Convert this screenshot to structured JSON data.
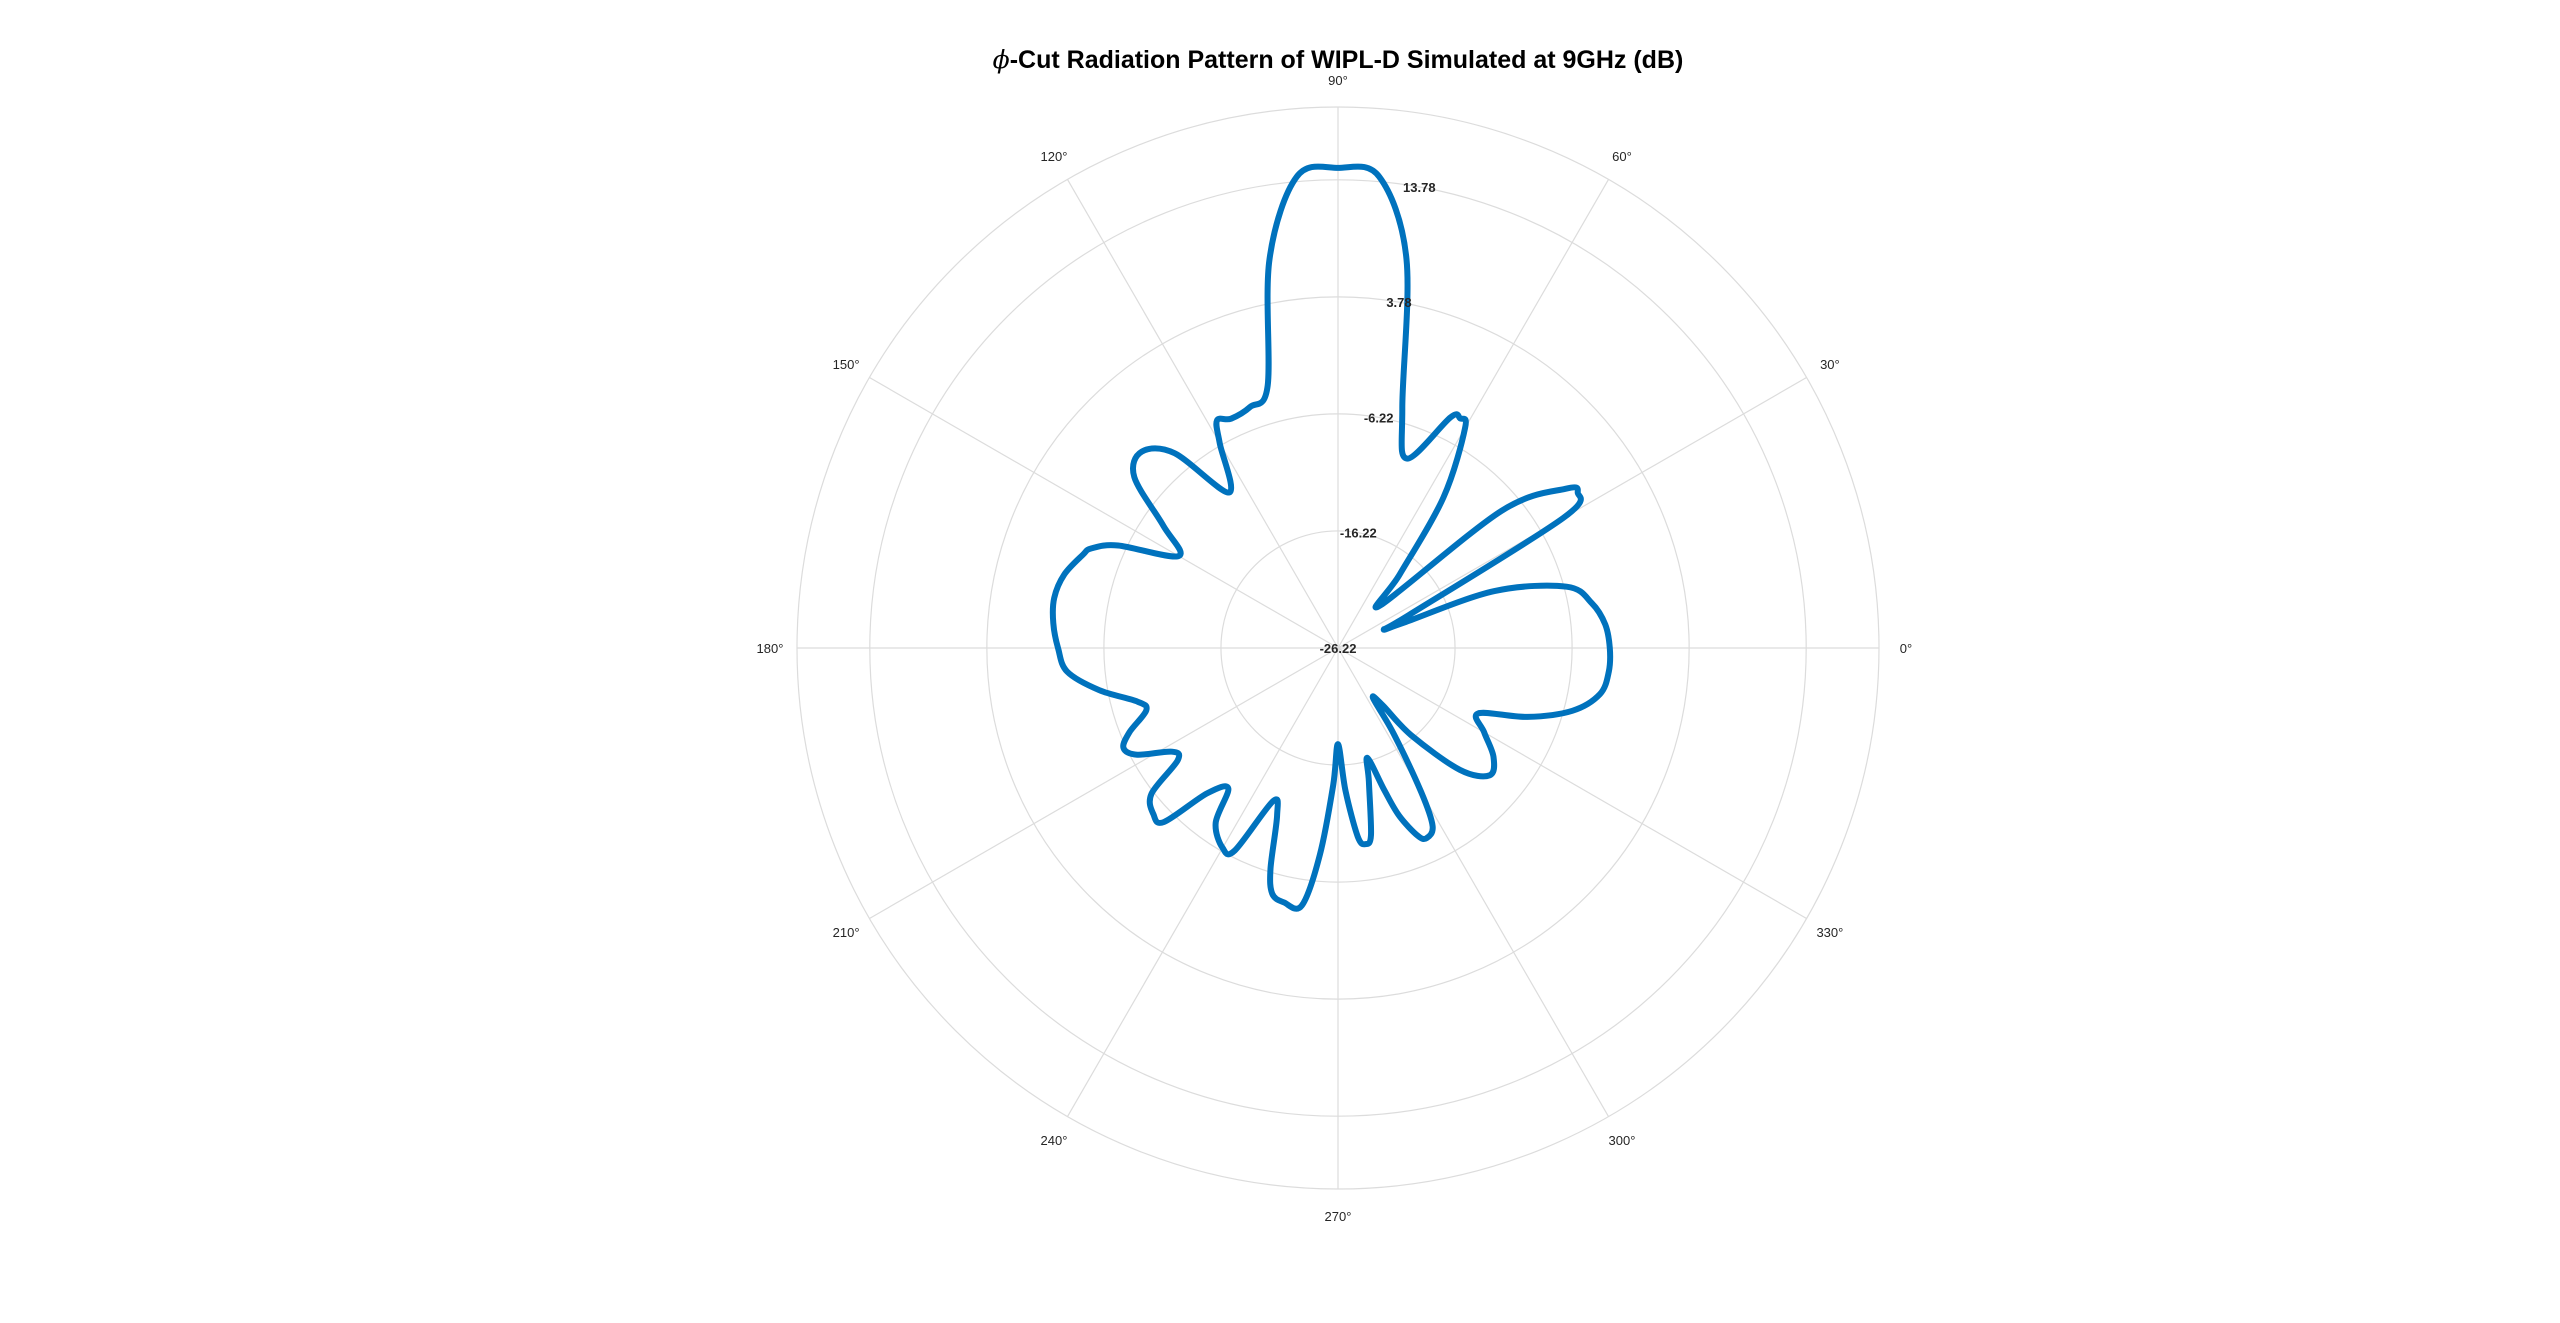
{
  "chart_data": {
    "type": "polar-line",
    "title": "-Cut Radiation Pattern of WIPL-D Simulated at 9GHz (dB)",
    "title_symbol": "ϕ",
    "angle_unit": "deg",
    "angle_ticks": [
      {
        "value": 0,
        "label": "0°"
      },
      {
        "value": 30,
        "label": "30°"
      },
      {
        "value": 60,
        "label": "60°"
      },
      {
        "value": 90,
        "label": "90°"
      },
      {
        "value": 120,
        "label": "120°"
      },
      {
        "value": 150,
        "label": "150°"
      },
      {
        "value": 180,
        "label": "180°"
      },
      {
        "value": 210,
        "label": "210°"
      },
      {
        "value": 240,
        "label": "240°"
      },
      {
        "value": 270,
        "label": "270°"
      },
      {
        "value": 300,
        "label": "300°"
      },
      {
        "value": 330,
        "label": "330°"
      }
    ],
    "rlim": [
      -26.22,
      20.0
    ],
    "r_ticks": [
      {
        "value": -26.22,
        "label": "-26.22"
      },
      {
        "value": -16.22,
        "label": "-16.22"
      },
      {
        "value": -6.22,
        "label": "-6.22"
      },
      {
        "value": 3.78,
        "label": "3.78"
      },
      {
        "value": 13.78,
        "label": "13.78"
      }
    ],
    "r_tick_label_angle": 80,
    "grid": true,
    "colors": {
      "series": "#0072bd",
      "grid": "#dcdcdc",
      "text": "#262626"
    },
    "series": [
      {
        "color": "#0072bd",
        "theta": [
          0,
          5,
          10,
          15,
          20,
          21,
          22,
          25,
          30,
          33,
          35,
          40,
          45,
          50,
          55,
          60,
          62,
          64,
          70,
          75,
          80,
          85,
          90,
          95,
          100,
          105,
          110,
          115,
          118,
          120,
          125,
          130,
          135,
          140,
          145,
          150,
          155,
          158,
          160,
          165,
          170,
          175,
          180,
          185,
          190,
          195,
          198,
          202,
          205,
          208,
          212,
          215,
          218,
          222,
          225,
          228,
          232,
          235,
          240,
          243,
          247,
          250,
          253,
          255,
          258,
          262,
          265,
          268,
          270,
          273,
          276,
          278,
          280,
          283,
          285,
          288,
          290,
          293,
          295,
          298,
          300,
          303,
          305,
          308,
          310,
          315,
          320,
          325,
          330,
          335,
          340,
          345,
          350,
          355,
          360
        ],
        "r": [
          -3.0,
          -3.3,
          -4.2,
          -6.0,
          -12.0,
          -20.0,
          -22.0,
          -19.5,
          -4.0,
          -1.8,
          -2.5,
          -8.0,
          -21.0,
          -18.0,
          -10.5,
          -4.5,
          -4.0,
          -4.3,
          -9.0,
          -5.0,
          7.5,
          14.2,
          14.8,
          14.2,
          7.5,
          -3.0,
          -4.3,
          -4.6,
          -4.2,
          -6.0,
          -10.0,
          -4.5,
          -2.5,
          -3.5,
          -8.0,
          -10.5,
          -5.5,
          -3.5,
          -3.0,
          -2.0,
          -1.6,
          -1.8,
          -2.3,
          -3.0,
          -5.5,
          -8.5,
          -9.0,
          -7.0,
          -6.0,
          -6.8,
          -9.5,
          -9.5,
          -6.0,
          -5.0,
          -5.2,
          -9.5,
          -11.0,
          -8.0,
          -6.5,
          -6.8,
          -12.0,
          -11.0,
          -6.5,
          -4.5,
          -4.0,
          -4.0,
          -8.5,
          -14.5,
          -18.0,
          -14.0,
          -10.0,
          -9.3,
          -10.0,
          -14.5,
          -16.5,
          -13.5,
          -11.0,
          -8.8,
          -8.3,
          -9.0,
          -12.0,
          -17.5,
          -21.0,
          -20.0,
          -16.5,
          -11.5,
          -9.3,
          -10.0,
          -11.8,
          -13.0,
          -9.0,
          -5.5,
          -3.5,
          -3.0,
          -3.0
        ]
      }
    ]
  }
}
